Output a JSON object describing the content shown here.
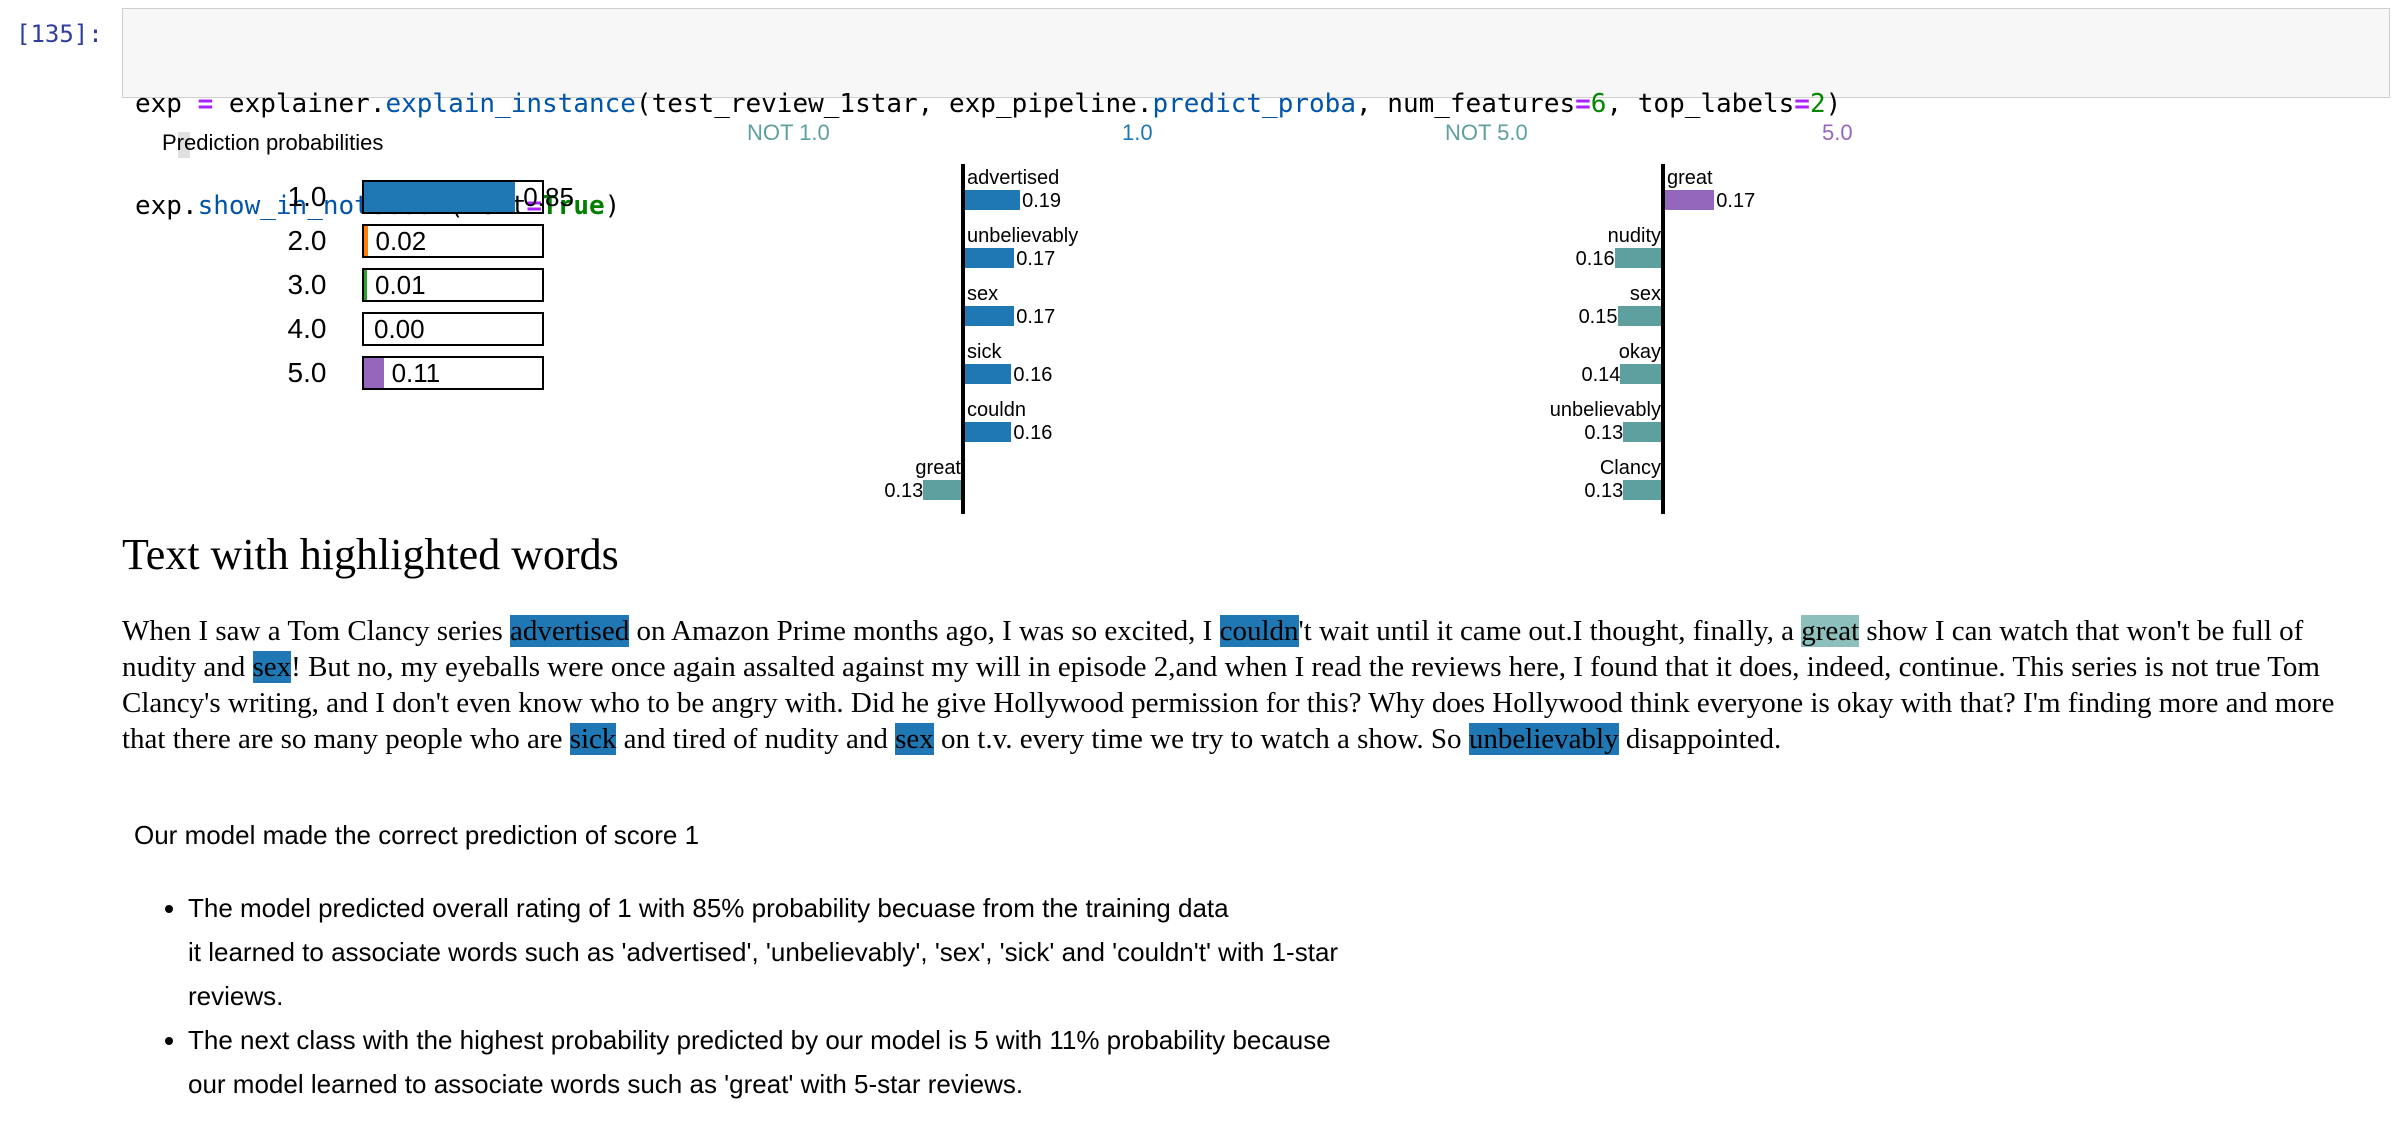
{
  "cell": {
    "prompt": "[135]:",
    "line1_parts": [
      {
        "t": "exp ",
        "c": ""
      },
      {
        "t": "=",
        "c": "op"
      },
      {
        "t": " explainer.",
        "c": ""
      },
      {
        "t": "explain_instance",
        "c": "fn"
      },
      {
        "t": "(test_review_1star, exp_pipeline.",
        "c": ""
      },
      {
        "t": "predict_proba",
        "c": "fn"
      },
      {
        "t": ", num_features",
        "c": ""
      },
      {
        "t": "=",
        "c": "op"
      },
      {
        "t": "6",
        "c": "num"
      },
      {
        "t": ", top_labels",
        "c": ""
      },
      {
        "t": "=",
        "c": "op"
      },
      {
        "t": "2",
        "c": "num"
      },
      {
        "t": ")",
        "c": ""
      }
    ],
    "line2_parts": [
      {
        "t": "exp.",
        "c": ""
      },
      {
        "t": "show_in_notebook",
        "c": "fn"
      },
      {
        "t": "(text",
        "c": ""
      },
      {
        "t": "=",
        "c": "op"
      },
      {
        "t": "True",
        "c": "kw"
      },
      {
        "t": ")",
        "c": ""
      }
    ]
  },
  "colors": {
    "class1": "#1f77b4",
    "class5": "#9467bd",
    "not_class": "#5ea0a0",
    "highlight_class1": "#1f77b4",
    "highlight_class5": "#8dc0bd",
    "class2": "#ff7f0e",
    "class3": "#2ca02c",
    "class4": "#d62728"
  },
  "prediction_probabilities": {
    "title": "Prediction probabilities",
    "rows": [
      {
        "label": "1.0",
        "value": 0.85,
        "text": "0.85",
        "color": "#1f77b4"
      },
      {
        "label": "2.0",
        "value": 0.02,
        "text": "0.02",
        "color": "#ff7f0e"
      },
      {
        "label": "3.0",
        "value": 0.01,
        "text": "0.01",
        "color": "#2ca02c"
      },
      {
        "label": "4.0",
        "value": 0.0,
        "text": "0.00",
        "color": "#d62728"
      },
      {
        "label": "5.0",
        "value": 0.11,
        "text": "0.11",
        "color": "#9467bd"
      }
    ]
  },
  "explanations": [
    {
      "not_label": "NOT 1.0",
      "label": "1.0",
      "label_color": "#1f77b4",
      "features": [
        {
          "word": "advertised",
          "weight": 0.19,
          "text": "0.19",
          "side": "pos"
        },
        {
          "word": "unbelievably",
          "weight": 0.17,
          "text": "0.17",
          "side": "pos"
        },
        {
          "word": "sex",
          "weight": 0.17,
          "text": "0.17",
          "side": "pos"
        },
        {
          "word": "sick",
          "weight": 0.16,
          "text": "0.16",
          "side": "pos"
        },
        {
          "word": "couldn",
          "weight": 0.16,
          "text": "0.16",
          "side": "pos"
        },
        {
          "word": "great",
          "weight": 0.13,
          "text": "0.13",
          "side": "neg"
        }
      ]
    },
    {
      "not_label": "NOT 5.0",
      "label": "5.0",
      "label_color": "#9467bd",
      "features": [
        {
          "word": "great",
          "weight": 0.17,
          "text": "0.17",
          "side": "pos"
        },
        {
          "word": "nudity",
          "weight": 0.16,
          "text": "0.16",
          "side": "neg"
        },
        {
          "word": "sex",
          "weight": 0.15,
          "text": "0.15",
          "side": "neg"
        },
        {
          "word": "okay",
          "weight": 0.14,
          "text": "0.14",
          "side": "neg"
        },
        {
          "word": "unbelievably",
          "weight": 0.13,
          "text": "0.13",
          "side": "neg"
        },
        {
          "word": "Clancy",
          "weight": 0.13,
          "text": "0.13",
          "side": "neg"
        }
      ]
    }
  ],
  "highlighted_text": {
    "heading": "Text with highlighted words",
    "segments": [
      {
        "t": "When I saw a Tom Clancy series ",
        "h": ""
      },
      {
        "t": "advertised",
        "h": "w1"
      },
      {
        "t": " on Amazon Prime months ago, I was so excited, I ",
        "h": ""
      },
      {
        "t": "couldn",
        "h": "w1"
      },
      {
        "t": "'t wait until it came out.I thought, finally, a ",
        "h": ""
      },
      {
        "t": "great",
        "h": "w5"
      },
      {
        "t": " show I can watch that won't be full of nudity and ",
        "h": ""
      },
      {
        "t": "sex",
        "h": "w1"
      },
      {
        "t": "! But no, my eyeballs were once again assalted against my will in episode 2,and when I read the reviews here, I found that it does, indeed, continue. This series is not true Tom Clancy's writing, and I don't even know who to be angry with. Did he give Hollywood permission for this? Why does Hollywood think everyone is okay with that? I'm finding more and more that there are so many people who are ",
        "h": ""
      },
      {
        "t": "sick",
        "h": "w1"
      },
      {
        "t": " and tired of nudity and ",
        "h": ""
      },
      {
        "t": "sex",
        "h": "w1"
      },
      {
        "t": " on t.v. every time we try to watch a show. So ",
        "h": ""
      },
      {
        "t": "unbelievably",
        "h": "w1"
      },
      {
        "t": " disappointed.",
        "h": ""
      }
    ]
  },
  "summary": "Our model made the correct prediction of score 1",
  "bullets": [
    {
      "lines": [
        "The model predicted overall rating of 1 with 85% probability becuase from the training data",
        "it learned to associate words such as 'advertised', 'unbelievably', 'sex', 'sick' and 'couldn't' with 1-star",
        "reviews."
      ]
    },
    {
      "lines": [
        "The next class with the highest probability predicted by our model is 5 with 11% probability because",
        "our model learned to associate words such as 'great' with 5-star reviews."
      ]
    }
  ]
}
